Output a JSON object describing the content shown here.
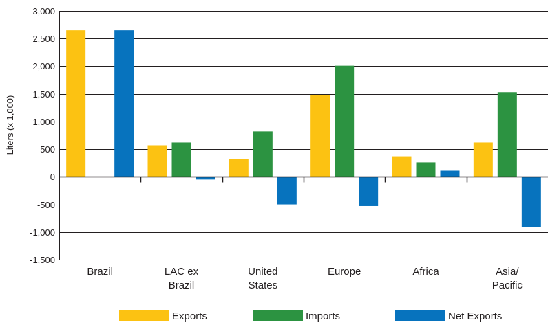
{
  "chart_data": {
    "type": "bar",
    "ylabel": "Liters (x 1,000)",
    "ylim": [
      -1500,
      3000
    ],
    "yticks": [
      3000,
      2500,
      2000,
      1500,
      1000,
      500,
      0,
      -500,
      -1000,
      -1500
    ],
    "ytick_labels": [
      "3,000",
      "2,500",
      "2,000",
      "1,500",
      "1,000",
      "500",
      "0",
      "-500",
      "-1,000",
      "-1,500"
    ],
    "grid": true,
    "legend_position": "bottom",
    "categories": [
      {
        "lines": [
          "Brazil"
        ]
      },
      {
        "lines": [
          "LAC ex",
          "Brazil"
        ]
      },
      {
        "lines": [
          "United",
          "States"
        ]
      },
      {
        "lines": [
          "Europe"
        ]
      },
      {
        "lines": [
          "Africa"
        ]
      },
      {
        "lines": [
          "Asia/",
          "Pacific"
        ]
      }
    ],
    "series": [
      {
        "name": "Exports",
        "color": "#fcc212",
        "values": [
          2650,
          570,
          320,
          1480,
          370,
          620
        ]
      },
      {
        "name": "Imports",
        "color": "#2c9341",
        "values": [
          0,
          620,
          820,
          2010,
          260,
          1530
        ]
      },
      {
        "name": "Net Exports",
        "color": "#0773be",
        "values": [
          2650,
          -50,
          -500,
          -530,
          110,
          -910
        ]
      }
    ]
  }
}
